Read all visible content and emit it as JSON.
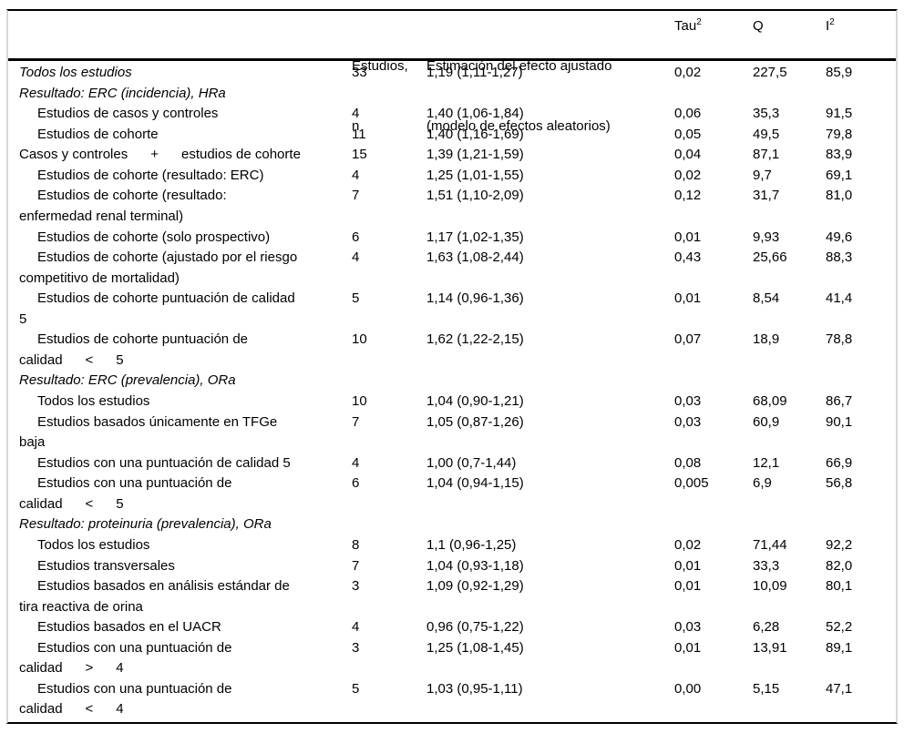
{
  "table": {
    "header": {
      "studies": {
        "line1": "Estudios,",
        "line2": "n"
      },
      "estimate": {
        "line1": "Estimación del efecto ajustado",
        "line2": "(modelo de efectos aleatorios)"
      },
      "tau": {
        "base": "Tau",
        "sup": "2"
      },
      "q": "Q",
      "i2": {
        "base": "I",
        "sup": "2"
      }
    },
    "rows": [
      {
        "lines": [
          {
            "t": "Todos los estudios",
            "ind": false
          }
        ],
        "italic": true,
        "n": "33",
        "est": "1,19 (1,11-1,27)",
        "tau": "0,02",
        "q": "227,5",
        "i2": "85,9"
      },
      {
        "lines": [
          {
            "t": "Resultado: ERC (incidencia), HRa",
            "ind": false
          }
        ],
        "italic": true,
        "n": "",
        "est": "",
        "tau": "",
        "q": "",
        "i2": ""
      },
      {
        "lines": [
          {
            "t": "Estudios de casos y controles",
            "ind": true
          }
        ],
        "italic": false,
        "n": "4",
        "est": "1,40 (1,06-1,84)",
        "tau": "0,06",
        "q": "35,3",
        "i2": "91,5"
      },
      {
        "lines": [
          {
            "t": "Estudios de cohorte",
            "ind": true
          }
        ],
        "italic": false,
        "n": "11",
        "est": "1,40 (1,16-1,69)",
        "tau": "0,05",
        "q": "49,5",
        "i2": "79,8"
      },
      {
        "lines": [
          {
            "t": "Casos y controles      +      estudios de cohorte",
            "ind": false
          }
        ],
        "italic": false,
        "n": "15",
        "est": "1,39 (1,21-1,59)",
        "tau": "0,04",
        "q": "87,1",
        "i2": "83,9"
      },
      {
        "lines": [
          {
            "t": "Estudios de cohorte (resultado: ERC)",
            "ind": true
          }
        ],
        "italic": false,
        "n": "4",
        "est": "1,25 (1,01-1,55)",
        "tau": "0,02",
        "q": "9,7",
        "i2": "69,1"
      },
      {
        "lines": [
          {
            "t": "Estudios de cohorte (resultado:",
            "ind": true
          },
          {
            "t": "enfermedad renal terminal)",
            "ind": false
          }
        ],
        "italic": false,
        "n": "7",
        "est": "1,51 (1,10-2,09)",
        "tau": "0,12",
        "q": "31,7",
        "i2": "81,0"
      },
      {
        "lines": [
          {
            "t": "Estudios de cohorte (solo prospectivo)",
            "ind": true
          }
        ],
        "italic": false,
        "n": "6",
        "est": "1,17 (1,02-1,35)",
        "tau": "0,01",
        "q": "9,93",
        "i2": "49,6"
      },
      {
        "lines": [
          {
            "t": "Estudios de cohorte (ajustado por el riesgo",
            "ind": true
          },
          {
            "t": "competitivo de mortalidad)",
            "ind": false
          }
        ],
        "italic": false,
        "n": "4",
        "est": "1,63 (1,08-2,44)",
        "tau": "0,43",
        "q": "25,66",
        "i2": "88,3"
      },
      {
        "lines": [
          {
            "t": "Estudios de cohorte puntuación de calidad",
            "ind": true
          },
          {
            "t": "5",
            "ind": false
          }
        ],
        "italic": false,
        "n": "5",
        "est": "1,14 (0,96-1,36)",
        "tau": "0,01",
        "q": "8,54",
        "i2": "41,4"
      },
      {
        "lines": [
          {
            "t": "Estudios de cohorte puntuación de",
            "ind": true
          },
          {
            "t": "calidad      <      5",
            "ind": false
          }
        ],
        "italic": false,
        "n": "10",
        "est": "1,62 (1,22-2,15)",
        "tau": "0,07",
        "q": "18,9",
        "i2": "78,8"
      },
      {
        "lines": [
          {
            "t": "Resultado: ERC (prevalencia), ORa",
            "ind": false
          }
        ],
        "italic": true,
        "n": "",
        "est": "",
        "tau": "",
        "q": "",
        "i2": ""
      },
      {
        "lines": [
          {
            "t": "Todos los estudios",
            "ind": true
          }
        ],
        "italic": false,
        "n": "10",
        "est": "1,04 (0,90-1,21)",
        "tau": "0,03",
        "q": "68,09",
        "i2": "86,7"
      },
      {
        "lines": [
          {
            "t": "Estudios basados únicamente en TFGe",
            "ind": true
          },
          {
            "t": "baja",
            "ind": false
          }
        ],
        "italic": false,
        "n": "7",
        "est": "1,05 (0,87-1,26)",
        "tau": "0,03",
        "q": "60,9",
        "i2": "90,1"
      },
      {
        "lines": [
          {
            "t": "Estudios con una puntuación de calidad 5",
            "ind": true
          }
        ],
        "italic": false,
        "n": "4",
        "est": "1,00 (0,7-1,44)",
        "tau": "0,08",
        "q": "12,1",
        "i2": "66,9"
      },
      {
        "lines": [
          {
            "t": "Estudios con una puntuación de",
            "ind": true
          },
          {
            "t": "calidad      <      5",
            "ind": false
          }
        ],
        "italic": false,
        "n": "6",
        "est": "1,04 (0,94-1,15)",
        "tau": "0,005",
        "q": "6,9",
        "i2": "56,8"
      },
      {
        "lines": [
          {
            "t": "Resultado: proteinuria (prevalencia), ORa",
            "ind": false
          }
        ],
        "italic": true,
        "n": "",
        "est": "",
        "tau": "",
        "q": "",
        "i2": ""
      },
      {
        "lines": [
          {
            "t": "Todos los estudios",
            "ind": true
          }
        ],
        "italic": false,
        "n": "8",
        "est": "1,1 (0,96-1,25)",
        "tau": "0,02",
        "q": "71,44",
        "i2": "92,2"
      },
      {
        "lines": [
          {
            "t": "Estudios transversales",
            "ind": true
          }
        ],
        "italic": false,
        "n": "7",
        "est": "1,04 (0,93-1,18)",
        "tau": "0,01",
        "q": "33,3",
        "i2": "82,0"
      },
      {
        "lines": [
          {
            "t": "Estudios basados en análisis estándar de",
            "ind": true
          },
          {
            "t": "tira reactiva de orina",
            "ind": false
          }
        ],
        "italic": false,
        "n": "3",
        "est": "1,09 (0,92-1,29)",
        "tau": "0,01",
        "q": "10,09",
        "i2": "80,1"
      },
      {
        "lines": [
          {
            "t": "Estudios basados en el UACR",
            "ind": true
          }
        ],
        "italic": false,
        "n": "4",
        "est": "0,96 (0,75-1,22)",
        "tau": "0,03",
        "q": "6,28",
        "i2": "52,2"
      },
      {
        "lines": [
          {
            "t": "Estudios con una puntuación de",
            "ind": true
          },
          {
            "t": "calidad      >      4",
            "ind": false
          }
        ],
        "italic": false,
        "n": "3",
        "est": "1,25 (1,08-1,45)",
        "tau": "0,01",
        "q": "13,91",
        "i2": "89,1"
      },
      {
        "lines": [
          {
            "t": "Estudios con una puntuación de",
            "ind": true
          },
          {
            "t": "calidad      <      4",
            "ind": false
          }
        ],
        "italic": false,
        "n": "5",
        "est": "1,03 (0,95-1,11)",
        "tau": "0,00",
        "q": "5,15",
        "i2": "47,1"
      }
    ]
  }
}
